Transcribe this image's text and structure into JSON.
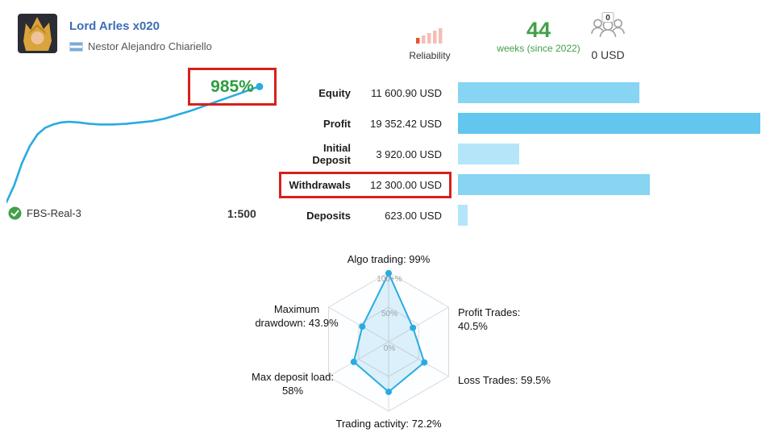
{
  "header": {
    "title": "Lord Arles x020",
    "author": "Nestor Alejandro Chiariello",
    "reliability": {
      "label": "Reliability"
    },
    "age": {
      "value": "44",
      "label": "weeks (since 2022)"
    },
    "subscribers": {
      "count": "0",
      "funds": "0 USD"
    }
  },
  "growth": {
    "percent": "985%",
    "broker": "FBS-Real-3",
    "leverage": "1:500"
  },
  "stats": {
    "rows": [
      {
        "label": "Equity",
        "value": "11 600.90 USD",
        "amount": 11600.9,
        "shade": "medium",
        "highlighted": false
      },
      {
        "label": "Profit",
        "value": "19 352.42 USD",
        "amount": 19352.42,
        "shade": "dark",
        "highlighted": false
      },
      {
        "label": "Initial Deposit",
        "value": "3 920.00 USD",
        "amount": 3920.0,
        "shade": "light",
        "highlighted": false
      },
      {
        "label": "Withdrawals",
        "value": "12 300.00 USD",
        "amount": 12300.0,
        "shade": "medium",
        "highlighted": true
      },
      {
        "label": "Deposits",
        "value": "623.00 USD",
        "amount": 623.0,
        "shade": "light",
        "highlighted": false
      }
    ]
  },
  "chart_data": [
    {
      "type": "line",
      "title": "Account growth curve",
      "unit": "%",
      "end_value": 985,
      "points": [
        [
          0,
          98
        ],
        [
          3,
          85
        ],
        [
          6,
          68
        ],
        [
          9,
          55
        ],
        [
          12,
          46
        ],
        [
          15,
          41
        ],
        [
          18,
          38.5
        ],
        [
          21,
          37
        ],
        [
          24,
          36.5
        ],
        [
          28,
          37
        ],
        [
          32,
          38
        ],
        [
          36,
          38.5
        ],
        [
          41,
          38.5
        ],
        [
          46,
          38
        ],
        [
          51,
          37
        ],
        [
          56,
          36
        ],
        [
          61,
          34
        ],
        [
          66,
          31
        ],
        [
          71,
          28
        ],
        [
          76,
          24.5
        ],
        [
          81,
          21
        ],
        [
          86,
          17.5
        ],
        [
          91,
          14
        ],
        [
          95,
          11
        ],
        [
          97.5,
          9.5
        ]
      ]
    },
    {
      "type": "radar",
      "axes": [
        "Algo trading",
        "Profit Trades",
        "Loss Trades",
        "Trading activity",
        "Max deposit load",
        "Maximum drawdown"
      ],
      "values": [
        99,
        40.5,
        59.5,
        72.2,
        58,
        43.9
      ],
      "max": 100,
      "rings": [
        {
          "r": 0,
          "label": "0%"
        },
        {
          "r": 50,
          "label": "50%"
        },
        {
          "r": 100,
          "label": "100+%"
        }
      ],
      "labels": {
        "algo": "Algo trading: 99%",
        "profit": "Profit Trades:\n40.5%",
        "loss": "Loss Trades: 59.5%",
        "activity": "Trading activity: 72.2%",
        "deposit_load": "Max deposit load:\n58%",
        "drawdown": "Maximum\ndrawdown: 43.9%"
      }
    }
  ],
  "colors": {
    "accent_blue": "#29abe2",
    "bar_shades": {
      "light": "#b5e5f9",
      "medium": "#87d4f3",
      "dark": "#62c6ef"
    },
    "green": "#43a047",
    "annotation_red": "#d8201c",
    "link_blue": "#3c6eb4"
  }
}
